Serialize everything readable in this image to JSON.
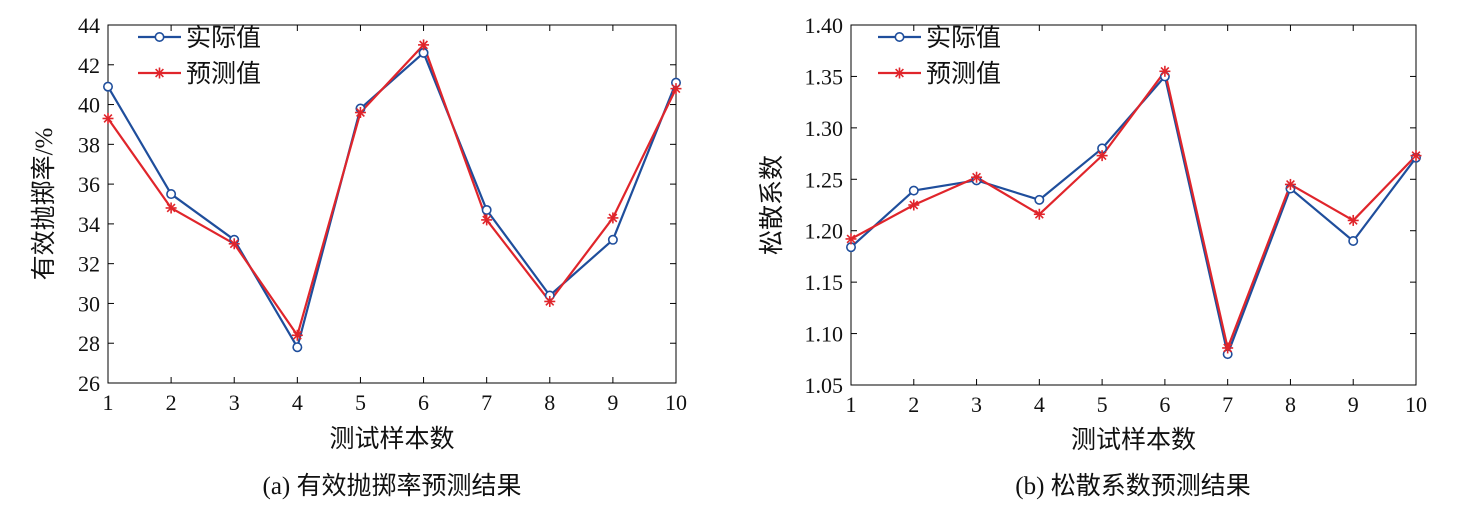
{
  "chart_data": [
    {
      "type": "line",
      "caption": "(a)  有效抛掷率预测结果",
      "xlabel": "测试样本数",
      "ylabel": "有效抛掷率/%",
      "x": [
        1,
        2,
        3,
        4,
        5,
        6,
        7,
        8,
        9,
        10
      ],
      "xticks": [
        "1",
        "2",
        "3",
        "4",
        "5",
        "6",
        "7",
        "8",
        "9",
        "10"
      ],
      "xlim": [
        1,
        10
      ],
      "ylim": [
        26,
        44
      ],
      "yticks": [
        "26",
        "28",
        "30",
        "32",
        "34",
        "36",
        "38",
        "40",
        "42",
        "44"
      ],
      "grid": false,
      "legend_position": "top-left",
      "series": [
        {
          "name": "实际值",
          "color": "#1f4e9c",
          "marker": "circle",
          "values": [
            40.9,
            35.5,
            33.2,
            27.8,
            39.8,
            42.6,
            34.7,
            30.4,
            33.2,
            41.1
          ]
        },
        {
          "name": "预测值",
          "color": "#e0252b",
          "marker": "asterisk",
          "values": [
            39.3,
            34.8,
            33.0,
            28.4,
            39.6,
            43.0,
            34.2,
            30.1,
            34.3,
            40.8
          ]
        }
      ]
    },
    {
      "type": "line",
      "caption": "(b)  松散系数预测结果",
      "xlabel": "测试样本数",
      "ylabel": "松散系数",
      "x": [
        1,
        2,
        3,
        4,
        5,
        6,
        7,
        8,
        9,
        10
      ],
      "xticks": [
        "1",
        "2",
        "3",
        "4",
        "5",
        "6",
        "7",
        "8",
        "9",
        "10"
      ],
      "xlim": [
        1,
        10
      ],
      "ylim": [
        1.05,
        1.4
      ],
      "yticks": [
        "1.05",
        "1.10",
        "1.15",
        "1.20",
        "1.25",
        "1.30",
        "1.35",
        "1.40"
      ],
      "grid": false,
      "legend_position": "top-left",
      "series": [
        {
          "name": "实际值",
          "color": "#1f4e9c",
          "marker": "circle",
          "values": [
            1.184,
            1.239,
            1.249,
            1.23,
            1.28,
            1.35,
            1.08,
            1.241,
            1.19,
            1.271
          ]
        },
        {
          "name": "预测值",
          "color": "#e0252b",
          "marker": "asterisk",
          "values": [
            1.192,
            1.225,
            1.252,
            1.216,
            1.273,
            1.355,
            1.086,
            1.245,
            1.21,
            1.273
          ]
        }
      ]
    }
  ]
}
